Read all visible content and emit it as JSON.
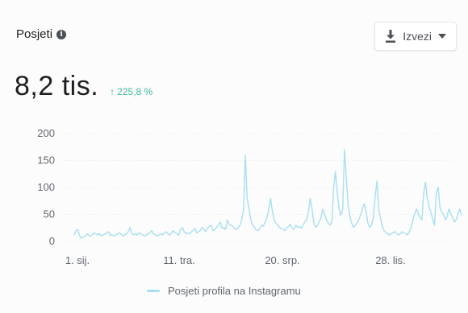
{
  "header": {
    "title": "Posjeti",
    "info_icon": "info-icon",
    "export_label": "Izvezi",
    "export_icon": "download-icon"
  },
  "summary": {
    "value": "8,2 tis.",
    "change": "225,8 %",
    "change_color": "#3fb8a0"
  },
  "chart_data": {
    "type": "line",
    "series": [
      {
        "name": "Posjeti profila na Instagramu",
        "color": "#a9dff0",
        "values": [
          12,
          20,
          22,
          10,
          6,
          8,
          10,
          14,
          12,
          10,
          12,
          16,
          14,
          12,
          14,
          10,
          12,
          14,
          16,
          18,
          12,
          12,
          10,
          12,
          14,
          16,
          14,
          10,
          12,
          14,
          18,
          26,
          14,
          12,
          14,
          12,
          16,
          14,
          12,
          10,
          12,
          14,
          16,
          20,
          14,
          12,
          10,
          12,
          14,
          12,
          16,
          18,
          14,
          12,
          16,
          20,
          16,
          14,
          12,
          22,
          26,
          18,
          14,
          16,
          14,
          18,
          20,
          24,
          16,
          18,
          20,
          26,
          22,
          18,
          24,
          28,
          30,
          20,
          22,
          26,
          30,
          36,
          24,
          26,
          22,
          40,
          32,
          30,
          28,
          24,
          22,
          26,
          30,
          40,
          60,
          160,
          80,
          60,
          40,
          30,
          26,
          22,
          20,
          24,
          30,
          28,
          36,
          44,
          60,
          80,
          56,
          40,
          34,
          30,
          26,
          24,
          22,
          20,
          26,
          28,
          32,
          24,
          22,
          30,
          26,
          28,
          24,
          30,
          36,
          40,
          54,
          80,
          60,
          34,
          26,
          30,
          36,
          44,
          60,
          50,
          40,
          34,
          30,
          36,
          100,
          130,
          90,
          60,
          48,
          60,
          170,
          120,
          70,
          46,
          34,
          26,
          30,
          34,
          40,
          50,
          60,
          70,
          56,
          34,
          26,
          30,
          44,
          80,
          112,
          60,
          44,
          28,
          20,
          16,
          14,
          12,
          14,
          16,
          18,
          14,
          12,
          14,
          18,
          16,
          14,
          12,
          18,
          26,
          40,
          52,
          60,
          50,
          44,
          40,
          90,
          110,
          80,
          64,
          54,
          40,
          30,
          90,
          100,
          64,
          54,
          50,
          40,
          46,
          60,
          52,
          44,
          36,
          40,
          50,
          60,
          48
        ]
      }
    ],
    "x_tick_labels": [
      "1. sij.",
      "11. tra.",
      "20. srp.",
      "28. lis."
    ],
    "y_tick_labels": [
      "0",
      "50",
      "100",
      "150",
      "200"
    ],
    "ylim": [
      0,
      200
    ],
    "grid": true,
    "legend_position": "bottom"
  }
}
